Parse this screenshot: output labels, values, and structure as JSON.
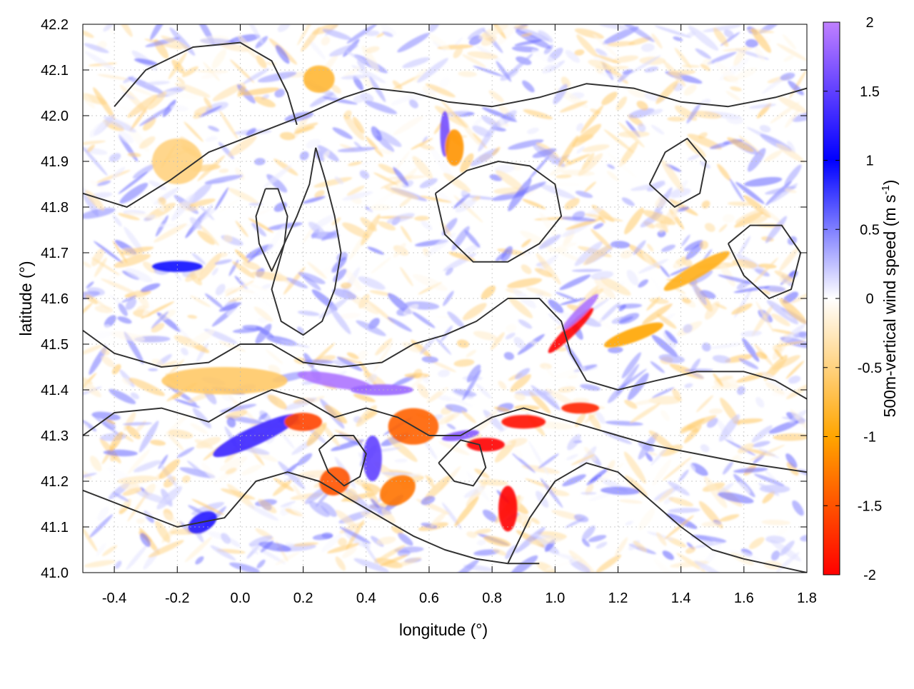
{
  "chart_data": {
    "type": "heatmap",
    "title": "",
    "xlabel": "longitude (°)",
    "ylabel": "latitude (°)",
    "colorbar_label": "500m-vertical wind speed (m s",
    "colorbar_label_sup": "-1",
    "colorbar_label_end": ")",
    "xlim": [
      -0.5,
      1.8
    ],
    "ylim": [
      41.0,
      42.2
    ],
    "clim": [
      -2,
      2
    ],
    "xticks": [
      -0.4,
      -0.2,
      0.0,
      0.2,
      0.4,
      0.6,
      0.8,
      1.0,
      1.2,
      1.4,
      1.6,
      1.8
    ],
    "xtick_labels": [
      "-0.4",
      "-0.2",
      "0.0",
      "0.2",
      "0.4",
      "0.6",
      "0.8",
      "1.0",
      "1.2",
      "1.4",
      "1.6",
      "1.8"
    ],
    "yticks": [
      41.0,
      41.1,
      41.2,
      41.3,
      41.4,
      41.5,
      41.6,
      41.7,
      41.8,
      41.9,
      42.0,
      42.1,
      42.2
    ],
    "ytick_labels": [
      "41.0",
      "41.1",
      "41.2",
      "41.3",
      "41.4",
      "41.5",
      "41.6",
      "41.7",
      "41.8",
      "41.9",
      "42.0",
      "42.1",
      "42.2"
    ],
    "cticks": [
      -2,
      -1.5,
      -1,
      -0.5,
      0,
      0.5,
      1,
      1.5,
      2
    ],
    "ctick_labels": [
      "-2",
      "-1.5",
      "-1",
      "-0.5",
      "0",
      "0.5",
      "1",
      "1.5",
      "2"
    ],
    "colormap": [
      {
        "v": -2,
        "color": "#ff0000"
      },
      {
        "v": -1,
        "color": "#ffa500"
      },
      {
        "v": 0,
        "color": "#ffffff"
      },
      {
        "v": 1,
        "color": "#0000ff"
      },
      {
        "v": 2,
        "color": "#c080ff"
      }
    ],
    "grid": true,
    "features": [
      {
        "lon": 0.3,
        "lat": 41.42,
        "value": 1.9,
        "slon": 0.12,
        "slat": 0.015,
        "angle": -10
      },
      {
        "lon": 0.45,
        "lat": 41.4,
        "value": 1.8,
        "slon": 0.1,
        "slat": 0.012,
        "angle": 0
      },
      {
        "lon": 1.05,
        "lat": 41.53,
        "value": -2.0,
        "slon": 0.1,
        "slat": 0.012,
        "angle": 45
      },
      {
        "lon": 1.08,
        "lat": 41.57,
        "value": 1.9,
        "slon": 0.08,
        "slat": 0.01,
        "angle": 45
      },
      {
        "lon": 0.7,
        "lat": 41.3,
        "value": 1.7,
        "slon": 0.06,
        "slat": 0.01,
        "angle": 10
      },
      {
        "lon": 0.78,
        "lat": 41.28,
        "value": -2.0,
        "slon": 0.06,
        "slat": 0.015,
        "angle": 0
      },
      {
        "lon": 0.9,
        "lat": 41.33,
        "value": -1.9,
        "slon": 0.07,
        "slat": 0.015,
        "angle": 0
      },
      {
        "lon": 1.08,
        "lat": 41.36,
        "value": -1.8,
        "slon": 0.06,
        "slat": 0.012,
        "angle": 0
      },
      {
        "lon": 0.85,
        "lat": 41.14,
        "value": -2.0,
        "slon": 0.03,
        "slat": 0.05,
        "angle": 0
      },
      {
        "lon": 0.05,
        "lat": 41.3,
        "value": 1.3,
        "slon": 0.15,
        "slat": 0.02,
        "angle": 25
      },
      {
        "lon": -0.2,
        "lat": 41.67,
        "value": 1.1,
        "slon": 0.08,
        "slat": 0.012,
        "angle": 0
      },
      {
        "lon": 0.2,
        "lat": 41.33,
        "value": -1.6,
        "slon": 0.06,
        "slat": 0.02,
        "angle": 0
      },
      {
        "lon": 0.55,
        "lat": 41.32,
        "value": -1.4,
        "slon": 0.08,
        "slat": 0.04,
        "angle": 0
      },
      {
        "lon": 0.3,
        "lat": 41.2,
        "value": -1.5,
        "slon": 0.05,
        "slat": 0.03,
        "angle": 30
      },
      {
        "lon": 0.5,
        "lat": 41.18,
        "value": -1.3,
        "slon": 0.06,
        "slat": 0.03,
        "angle": 30
      },
      {
        "lon": 0.42,
        "lat": 41.25,
        "value": 1.5,
        "slon": 0.03,
        "slat": 0.05,
        "angle": 0
      },
      {
        "lon": 0.65,
        "lat": 41.96,
        "value": 1.6,
        "slon": 0.015,
        "slat": 0.05,
        "angle": 0
      },
      {
        "lon": 0.68,
        "lat": 41.93,
        "value": -1.1,
        "slon": 0.03,
        "slat": 0.04,
        "angle": 0
      },
      {
        "lon": 1.25,
        "lat": 41.52,
        "value": -1.0,
        "slon": 0.1,
        "slat": 0.015,
        "angle": 20
      },
      {
        "lon": 1.45,
        "lat": 41.66,
        "value": -0.9,
        "slon": 0.12,
        "slat": 0.015,
        "angle": 30
      },
      {
        "lon": -0.05,
        "lat": 41.42,
        "value": -0.6,
        "slon": 0.2,
        "slat": 0.03,
        "angle": 0
      },
      {
        "lon": -0.12,
        "lat": 41.11,
        "value": 1.2,
        "slon": 0.05,
        "slat": 0.02,
        "angle": 30
      },
      {
        "lon": 0.25,
        "lat": 42.08,
        "value": -0.8,
        "slon": 0.05,
        "slat": 0.03,
        "angle": 0
      },
      {
        "lon": -0.2,
        "lat": 41.9,
        "value": -0.5,
        "slon": 0.08,
        "slat": 0.05,
        "angle": 0
      }
    ],
    "contours": [
      [
        [
          0.24,
          41.93
        ],
        [
          0.22,
          41.85
        ],
        [
          0.18,
          41.78
        ],
        [
          0.14,
          41.72
        ],
        [
          0.1,
          41.62
        ],
        [
          0.13,
          41.55
        ],
        [
          0.2,
          41.52
        ],
        [
          0.26,
          41.55
        ],
        [
          0.3,
          41.62
        ],
        [
          0.32,
          41.7
        ],
        [
          0.3,
          41.78
        ],
        [
          0.27,
          41.86
        ],
        [
          0.24,
          41.93
        ]
      ],
      [
        [
          0.62,
          41.83
        ],
        [
          0.65,
          41.74
        ],
        [
          0.74,
          41.68
        ],
        [
          0.85,
          41.68
        ],
        [
          0.95,
          41.72
        ],
        [
          1.02,
          41.78
        ],
        [
          1.0,
          41.85
        ],
        [
          0.92,
          41.89
        ],
        [
          0.82,
          41.9
        ],
        [
          0.72,
          41.88
        ],
        [
          0.62,
          41.83
        ]
      ],
      [
        [
          0.08,
          41.84
        ],
        [
          0.05,
          41.78
        ],
        [
          0.06,
          41.72
        ],
        [
          0.1,
          41.66
        ],
        [
          0.14,
          41.72
        ],
        [
          0.15,
          41.78
        ],
        [
          0.12,
          41.84
        ],
        [
          0.08,
          41.84
        ]
      ],
      [
        [
          -0.5,
          41.83
        ],
        [
          -0.36,
          41.8
        ],
        [
          -0.22,
          41.86
        ],
        [
          -0.1,
          41.92
        ],
        [
          0.05,
          41.96
        ],
        [
          0.2,
          42.0
        ],
        [
          0.33,
          42.04
        ],
        [
          0.42,
          42.06
        ],
        [
          0.55,
          42.05
        ],
        [
          0.66,
          42.03
        ],
        [
          0.8,
          42.02
        ],
        [
          0.95,
          42.04
        ],
        [
          1.1,
          42.07
        ],
        [
          1.25,
          42.06
        ],
        [
          1.4,
          42.03
        ],
        [
          1.55,
          42.02
        ],
        [
          1.7,
          42.04
        ],
        [
          1.8,
          42.06
        ]
      ],
      [
        [
          -0.5,
          41.53
        ],
        [
          -0.4,
          41.48
        ],
        [
          -0.25,
          41.45
        ],
        [
          -0.1,
          41.46
        ],
        [
          0.0,
          41.5
        ],
        [
          0.1,
          41.5
        ],
        [
          0.2,
          41.46
        ],
        [
          0.32,
          41.45
        ],
        [
          0.45,
          41.46
        ],
        [
          0.55,
          41.5
        ],
        [
          0.65,
          41.52
        ],
        [
          0.75,
          41.55
        ],
        [
          0.85,
          41.6
        ],
        [
          0.95,
          41.6
        ],
        [
          1.02,
          41.55
        ],
        [
          1.05,
          41.48
        ],
        [
          1.1,
          41.42
        ],
        [
          1.2,
          41.4
        ],
        [
          1.32,
          41.42
        ],
        [
          1.45,
          41.44
        ],
        [
          1.6,
          41.44
        ],
        [
          1.7,
          41.42
        ],
        [
          1.8,
          41.38
        ]
      ],
      [
        [
          -0.5,
          41.3
        ],
        [
          -0.4,
          41.35
        ],
        [
          -0.25,
          41.36
        ],
        [
          -0.1,
          41.33
        ],
        [
          0.0,
          41.37
        ],
        [
          0.1,
          41.4
        ],
        [
          0.2,
          41.38
        ],
        [
          0.3,
          41.34
        ],
        [
          0.4,
          41.36
        ],
        [
          0.5,
          41.34
        ],
        [
          0.6,
          41.3
        ],
        [
          0.7,
          41.3
        ],
        [
          0.8,
          41.34
        ],
        [
          0.9,
          41.36
        ],
        [
          1.0,
          41.34
        ],
        [
          1.1,
          41.32
        ],
        [
          1.2,
          41.3
        ],
        [
          1.3,
          41.28
        ],
        [
          1.45,
          41.26
        ],
        [
          1.6,
          41.24
        ],
        [
          1.8,
          41.22
        ]
      ],
      [
        [
          -0.5,
          41.18
        ],
        [
          -0.35,
          41.14
        ],
        [
          -0.2,
          41.1
        ],
        [
          -0.05,
          41.12
        ],
        [
          0.05,
          41.2
        ],
        [
          0.15,
          41.22
        ],
        [
          0.25,
          41.2
        ],
        [
          0.35,
          41.16
        ],
        [
          0.45,
          41.12
        ],
        [
          0.55,
          41.08
        ],
        [
          0.65,
          41.05
        ],
        [
          0.75,
          41.03
        ],
        [
          0.85,
          41.02
        ],
        [
          0.95,
          41.02
        ]
      ],
      [
        [
          0.85,
          41.02
        ],
        [
          0.92,
          41.12
        ],
        [
          1.0,
          41.2
        ],
        [
          1.1,
          41.24
        ],
        [
          1.2,
          41.22
        ],
        [
          1.3,
          41.16
        ],
        [
          1.4,
          41.1
        ],
        [
          1.5,
          41.05
        ],
        [
          1.6,
          41.03
        ],
        [
          1.8,
          41.0
        ]
      ],
      [
        [
          0.25,
          41.27
        ],
        [
          0.28,
          41.22
        ],
        [
          0.33,
          41.19
        ],
        [
          0.38,
          41.21
        ],
        [
          0.4,
          41.26
        ],
        [
          0.36,
          41.3
        ],
        [
          0.3,
          41.3
        ],
        [
          0.25,
          41.27
        ]
      ],
      [
        [
          0.63,
          41.24
        ],
        [
          0.68,
          41.2
        ],
        [
          0.74,
          41.19
        ],
        [
          0.78,
          41.23
        ],
        [
          0.76,
          41.28
        ],
        [
          0.7,
          41.29
        ],
        [
          0.63,
          41.24
        ]
      ],
      [
        [
          -0.4,
          42.02
        ],
        [
          -0.3,
          42.1
        ],
        [
          -0.15,
          42.15
        ],
        [
          0.0,
          42.16
        ],
        [
          0.1,
          42.12
        ],
        [
          0.15,
          42.05
        ],
        [
          0.18,
          41.98
        ]
      ],
      [
        [
          1.55,
          41.72
        ],
        [
          1.6,
          41.65
        ],
        [
          1.68,
          41.6
        ],
        [
          1.75,
          41.62
        ],
        [
          1.78,
          41.7
        ],
        [
          1.72,
          41.76
        ],
        [
          1.62,
          41.76
        ],
        [
          1.55,
          41.72
        ]
      ],
      [
        [
          1.3,
          41.85
        ],
        [
          1.35,
          41.92
        ],
        [
          1.42,
          41.95
        ],
        [
          1.48,
          41.9
        ],
        [
          1.46,
          41.83
        ],
        [
          1.38,
          41.8
        ],
        [
          1.3,
          41.85
        ]
      ]
    ]
  }
}
